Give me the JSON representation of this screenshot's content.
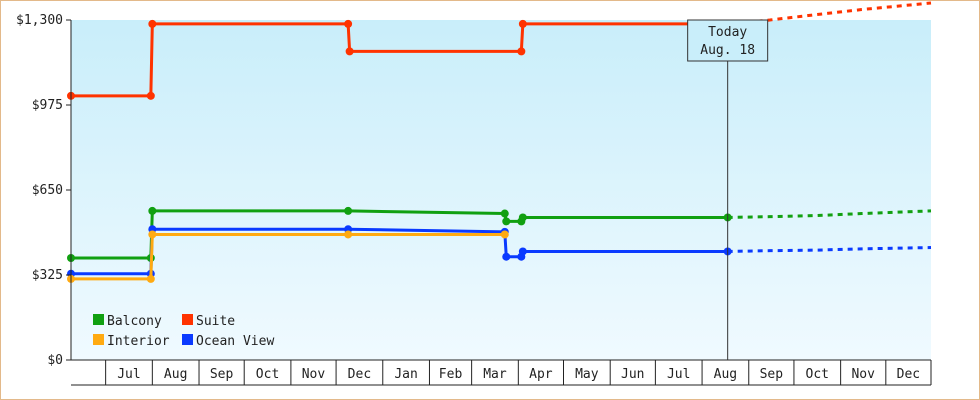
{
  "chart_data": {
    "type": "line",
    "title": "",
    "xlabel": "",
    "ylabel": "",
    "y_ticks": [
      "$0",
      "$325",
      "$650",
      "$975",
      "$1,300"
    ],
    "y_tick_values": [
      0,
      325,
      650,
      975,
      1300
    ],
    "ylim": [
      0,
      1300
    ],
    "x_range": [
      "2017-06-08",
      "2018-12-31"
    ],
    "x_ticks": [
      {
        "label": "Jul",
        "date": "2017-07"
      },
      {
        "label": "Aug",
        "date": "2017-08"
      },
      {
        "label": "Sep",
        "date": "2017-09"
      },
      {
        "label": "Oct",
        "date": "2017-10"
      },
      {
        "label": "Nov",
        "date": "2017-11"
      },
      {
        "label": "Dec",
        "date": "2017-12"
      },
      {
        "label": "Jan",
        "date": "2018-01"
      },
      {
        "label": "Feb",
        "date": "2018-02"
      },
      {
        "label": "Mar",
        "date": "2018-03"
      },
      {
        "label": "Apr",
        "date": "2018-04"
      },
      {
        "label": "May",
        "date": "2018-05"
      },
      {
        "label": "Jun",
        "date": "2018-06"
      },
      {
        "label": "Jul",
        "date": "2018-07"
      },
      {
        "label": "Aug",
        "date": "2018-08"
      },
      {
        "label": "Sep",
        "date": "2018-09"
      },
      {
        "label": "Oct",
        "date": "2018-10"
      },
      {
        "label": "Nov",
        "date": "2018-11"
      },
      {
        "label": "Dec",
        "date": "2018-12"
      }
    ],
    "today": {
      "date": "2018-08-18",
      "line1": "Today",
      "line2": "Aug. 18"
    },
    "legend_position": "bottom-left",
    "series": [
      {
        "name": "Suite",
        "color": "#ff3300",
        "points": [
          [
            "2017-06-08",
            1010
          ],
          [
            "2017-07-31",
            1010
          ],
          [
            "2017-08-01",
            1285
          ],
          [
            "2017-12-09",
            1285
          ],
          [
            "2017-12-10",
            1180
          ],
          [
            "2018-04-03",
            1180
          ],
          [
            "2018-04-04",
            1285
          ],
          [
            "2018-08-18",
            1285
          ]
        ],
        "projection": [
          [
            "2018-08-18",
            1285
          ],
          [
            "2018-09-15",
            1300
          ],
          [
            "2018-10-15",
            1320
          ],
          [
            "2018-11-15",
            1340
          ],
          [
            "2018-12-31",
            1365
          ]
        ]
      },
      {
        "name": "Balcony",
        "color": "#11a011",
        "points": [
          [
            "2017-06-08",
            390
          ],
          [
            "2017-07-31",
            390
          ],
          [
            "2017-08-01",
            570
          ],
          [
            "2017-12-09",
            570
          ],
          [
            "2018-03-23",
            560
          ],
          [
            "2018-03-24",
            530
          ],
          [
            "2018-04-03",
            530
          ],
          [
            "2018-04-04",
            545
          ],
          [
            "2018-08-18",
            545
          ]
        ],
        "projection": [
          [
            "2018-08-18",
            545
          ],
          [
            "2018-09-15",
            548
          ],
          [
            "2018-10-15",
            552
          ],
          [
            "2018-11-15",
            560
          ],
          [
            "2018-12-31",
            570
          ]
        ]
      },
      {
        "name": "Ocean View",
        "color": "#0a3aff",
        "points": [
          [
            "2017-06-08",
            330
          ],
          [
            "2017-07-31",
            330
          ],
          [
            "2017-08-01",
            500
          ],
          [
            "2017-12-09",
            500
          ],
          [
            "2018-03-23",
            490
          ],
          [
            "2018-03-24",
            395
          ],
          [
            "2018-04-03",
            395
          ],
          [
            "2018-04-04",
            415
          ],
          [
            "2018-08-18",
            415
          ]
        ],
        "projection": [
          [
            "2018-08-18",
            415
          ],
          [
            "2018-09-15",
            418
          ],
          [
            "2018-10-15",
            420
          ],
          [
            "2018-11-15",
            425
          ],
          [
            "2018-12-31",
            430
          ]
        ]
      },
      {
        "name": "Interior",
        "color": "#ffaa11",
        "points": [
          [
            "2017-06-08",
            310
          ],
          [
            "2017-07-31",
            310
          ],
          [
            "2017-08-01",
            480
          ],
          [
            "2017-12-09",
            480
          ],
          [
            "2018-03-23",
            480
          ]
        ],
        "projection": []
      }
    ],
    "legend": [
      {
        "name": "Balcony",
        "color": "#11a011"
      },
      {
        "name": "Suite",
        "color": "#ff3300"
      },
      {
        "name": "Interior",
        "color": "#ffaa11"
      },
      {
        "name": "Ocean View",
        "color": "#0a3aff"
      }
    ]
  }
}
